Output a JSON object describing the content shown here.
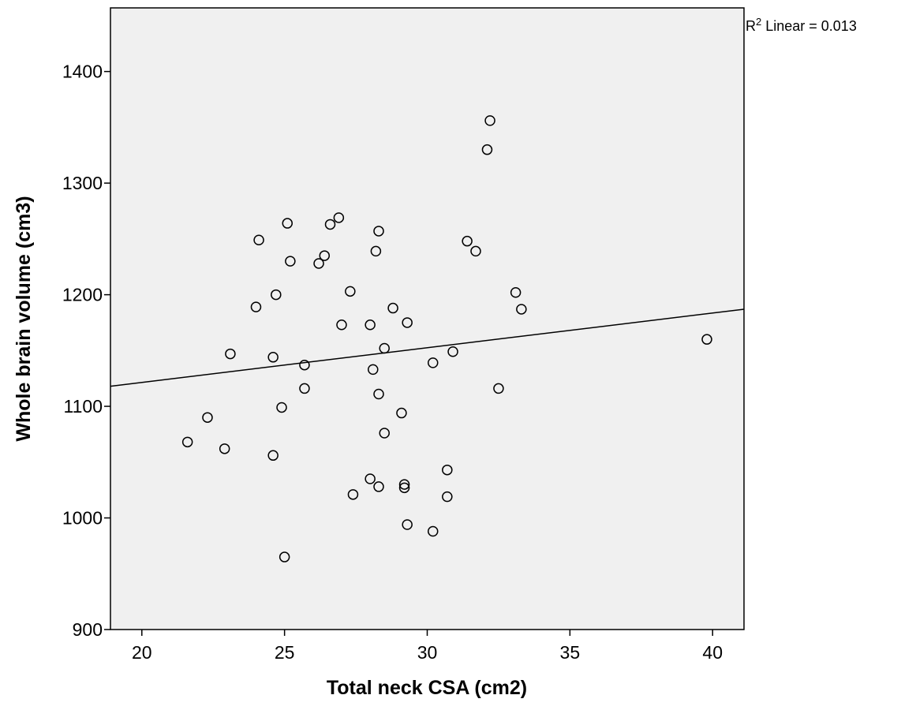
{
  "chart_data": {
    "type": "scatter",
    "xlabel": "Total neck CSA (cm2)",
    "ylabel": "Whole brain volume (cm3)",
    "xlim": [
      18.9,
      41.1
    ],
    "ylim": [
      900,
      1457
    ],
    "xticks": [
      20,
      25,
      30,
      35,
      40
    ],
    "yticks": [
      900,
      1000,
      1100,
      1200,
      1300,
      1400
    ],
    "xtick_labels": [
      "20",
      "25",
      "30",
      "35",
      "40"
    ],
    "ytick_labels": [
      "900",
      "1000",
      "1100",
      "1200",
      "1300",
      "1400"
    ],
    "grid": false,
    "plot_background": "#f0f0f0",
    "marker_color": "#000000",
    "fit_line": {
      "type": "linear",
      "label_prefix": "R",
      "label_sup": "2",
      "label_rest": " Linear = 0.013",
      "x": [
        18.9,
        41.1
      ],
      "y": [
        1118,
        1187
      ]
    },
    "points": [
      {
        "x": 32.2,
        "y": 1356
      },
      {
        "x": 32.1,
        "y": 1330
      },
      {
        "x": 26.9,
        "y": 1269
      },
      {
        "x": 25.1,
        "y": 1264
      },
      {
        "x": 26.6,
        "y": 1263
      },
      {
        "x": 28.3,
        "y": 1257
      },
      {
        "x": 24.1,
        "y": 1249
      },
      {
        "x": 31.4,
        "y": 1248
      },
      {
        "x": 28.2,
        "y": 1239
      },
      {
        "x": 31.7,
        "y": 1239
      },
      {
        "x": 26.4,
        "y": 1235
      },
      {
        "x": 25.2,
        "y": 1230
      },
      {
        "x": 26.2,
        "y": 1228
      },
      {
        "x": 27.3,
        "y": 1203
      },
      {
        "x": 33.1,
        "y": 1202
      },
      {
        "x": 24.7,
        "y": 1200
      },
      {
        "x": 24.0,
        "y": 1189
      },
      {
        "x": 28.8,
        "y": 1188
      },
      {
        "x": 33.3,
        "y": 1187
      },
      {
        "x": 29.3,
        "y": 1175
      },
      {
        "x": 27.0,
        "y": 1173
      },
      {
        "x": 28.0,
        "y": 1173
      },
      {
        "x": 39.8,
        "y": 1160
      },
      {
        "x": 28.5,
        "y": 1152
      },
      {
        "x": 30.9,
        "y": 1149
      },
      {
        "x": 23.1,
        "y": 1147
      },
      {
        "x": 24.6,
        "y": 1144
      },
      {
        "x": 30.2,
        "y": 1139
      },
      {
        "x": 25.7,
        "y": 1137
      },
      {
        "x": 28.1,
        "y": 1133
      },
      {
        "x": 25.7,
        "y": 1116
      },
      {
        "x": 32.5,
        "y": 1116
      },
      {
        "x": 28.3,
        "y": 1111
      },
      {
        "x": 24.9,
        "y": 1099
      },
      {
        "x": 29.1,
        "y": 1094
      },
      {
        "x": 22.3,
        "y": 1090
      },
      {
        "x": 28.5,
        "y": 1076
      },
      {
        "x": 21.6,
        "y": 1068
      },
      {
        "x": 22.9,
        "y": 1062
      },
      {
        "x": 24.6,
        "y": 1056
      },
      {
        "x": 30.7,
        "y": 1043
      },
      {
        "x": 28.0,
        "y": 1035
      },
      {
        "x": 29.2,
        "y": 1030
      },
      {
        "x": 28.3,
        "y": 1028
      },
      {
        "x": 29.2,
        "y": 1027
      },
      {
        "x": 27.4,
        "y": 1021
      },
      {
        "x": 30.7,
        "y": 1019
      },
      {
        "x": 29.3,
        "y": 994
      },
      {
        "x": 30.2,
        "y": 988
      },
      {
        "x": 25.0,
        "y": 965
      }
    ]
  }
}
